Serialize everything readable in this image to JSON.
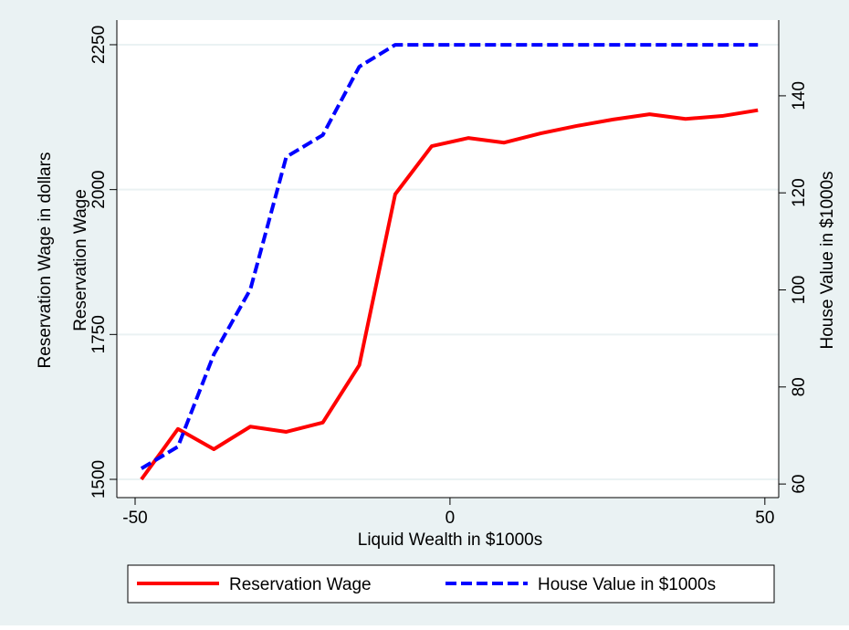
{
  "chart_data": {
    "type": "line",
    "ylabel": [
      "Reservation Wage in dollars",
      "Reservation Wage"
    ],
    "y2label": "House Value in $1000s",
    "xlabel": "Liquid Wealth in $1000s",
    "x": [
      -49,
      -43.2,
      -37.5,
      -31.7,
      -26,
      -20.2,
      -14.4,
      -8.7,
      -2.9,
      2.9,
      8.6,
      14.4,
      20.2,
      25.9,
      31.7,
      37.4,
      43.2,
      48.9
    ],
    "series": [
      {
        "name": "Reservation Wage",
        "color": "#ff0000",
        "linestyle": "solid",
        "axis": "y",
        "values": [
          1500,
          1587,
          1552,
          1591,
          1582,
          1598,
          1697,
          1992,
          2075,
          2089,
          2081,
          2097,
          2110,
          2121,
          2130,
          2122,
          2127,
          2137
        ]
      },
      {
        "name": "House Value in $1000s",
        "color": "#0000ff",
        "linestyle": "dashed",
        "axis": "y2",
        "values": [
          63.2,
          67.7,
          86.7,
          100.1,
          127.4,
          131.9,
          146,
          150.5,
          150.5,
          150.5,
          150.5,
          150.5,
          150.5,
          150.5,
          150.5,
          150.5,
          150.5,
          150.5
        ]
      }
    ],
    "xlim": [
      -52.9,
      52.2
    ],
    "xticks": [
      -50,
      0,
      50
    ],
    "ylim": [
      1468.5,
      2292.5
    ],
    "yticks": [
      1500,
      1750,
      2000,
      2250
    ],
    "y2lim": [
      57.2,
      155.6
    ],
    "y2ticks": [
      60,
      80,
      100,
      120,
      140
    ],
    "grid": true,
    "legend": "bottom"
  }
}
